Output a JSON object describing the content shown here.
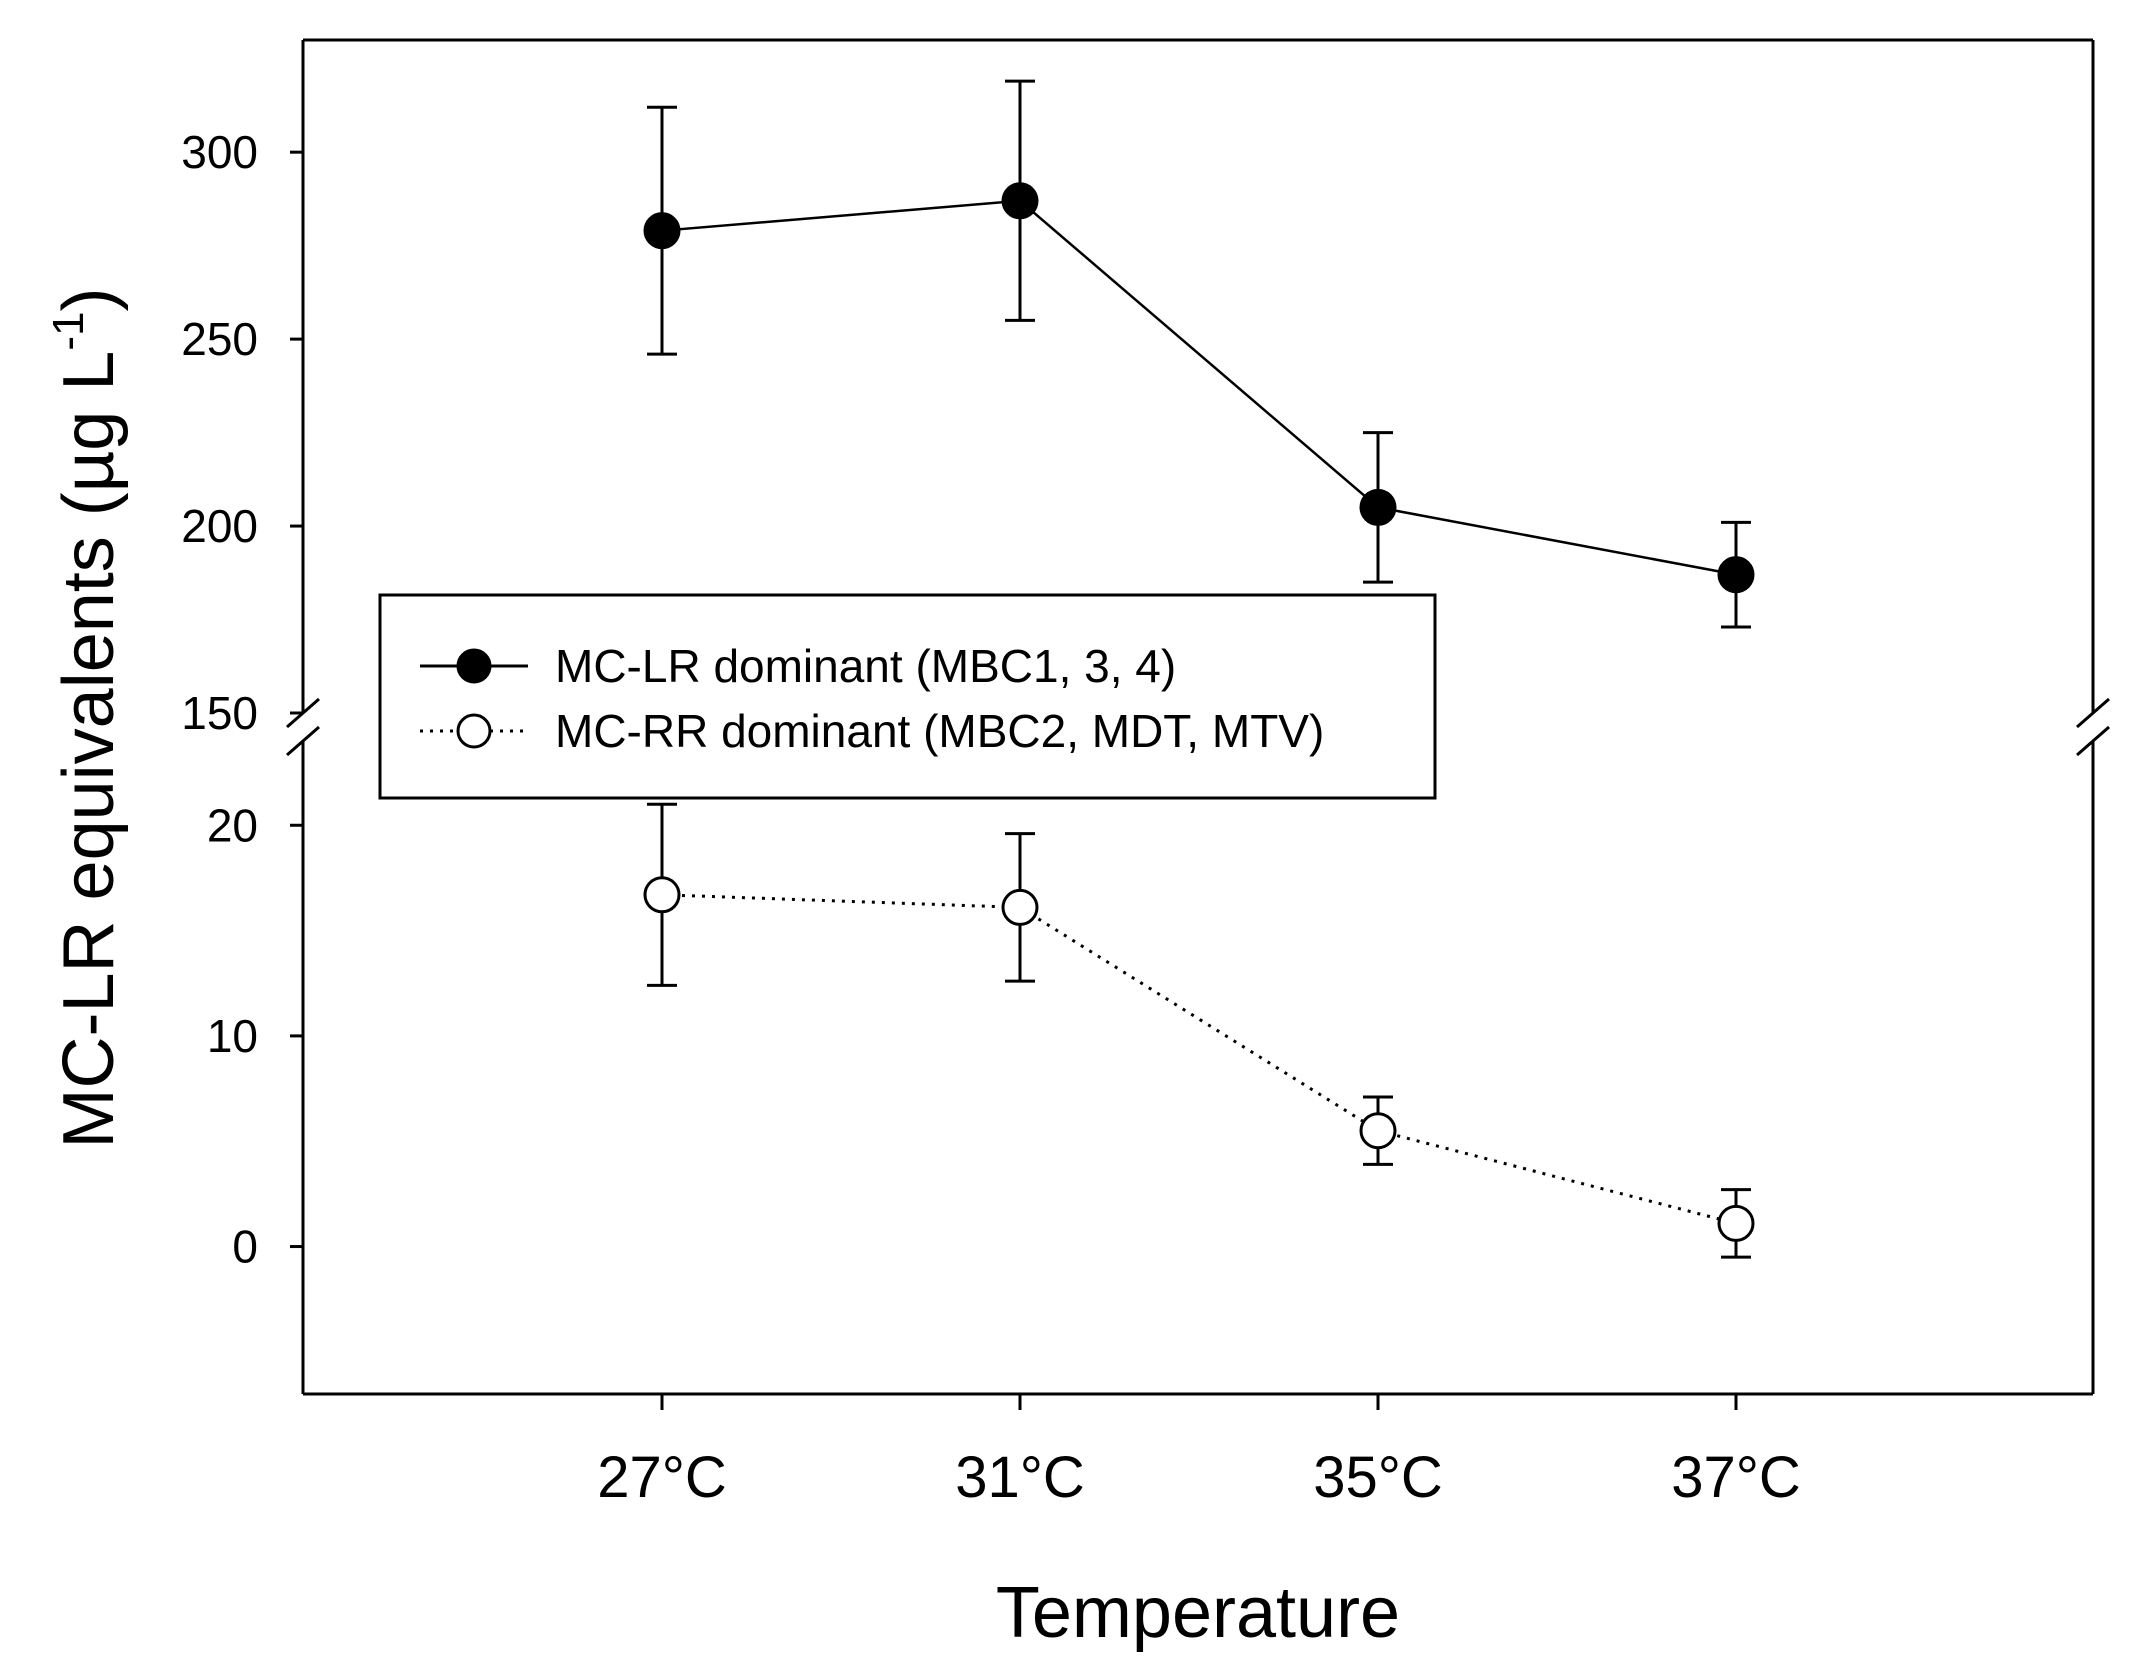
{
  "chart_data": {
    "type": "line",
    "xlabel": "Temperature",
    "ylabel": "MC-LR equivalents (µg L",
    "ylabel_superscript": "-1",
    "ylabel_close": ")",
    "categories": [
      "27°C",
      "31°C",
      "35°C",
      "37°C"
    ],
    "y_axis_broken": true,
    "lower_segment": {
      "ylim": [
        -7,
        24
      ],
      "ticks": [
        0,
        10,
        20
      ]
    },
    "upper_segment": {
      "ylim": [
        150,
        330
      ],
      "ticks": [
        150,
        200,
        250,
        300
      ]
    },
    "series": [
      {
        "name": "MC-LR dominant (MBC1, 3, 4)",
        "marker": "filled-circle",
        "line": "solid",
        "segment": "upper",
        "values": [
          279,
          287,
          205,
          187
        ],
        "error": [
          33,
          32,
          20,
          14
        ]
      },
      {
        "name": "MC-RR dominant (MBC2, MDT, MTV)",
        "marker": "open-circle",
        "line": "dotted",
        "segment": "lower",
        "values": [
          16.7,
          16.1,
          5.5,
          1.1
        ],
        "error": [
          4.3,
          3.5,
          1.6,
          1.6
        ]
      }
    ],
    "legend_position": "middle-left"
  }
}
